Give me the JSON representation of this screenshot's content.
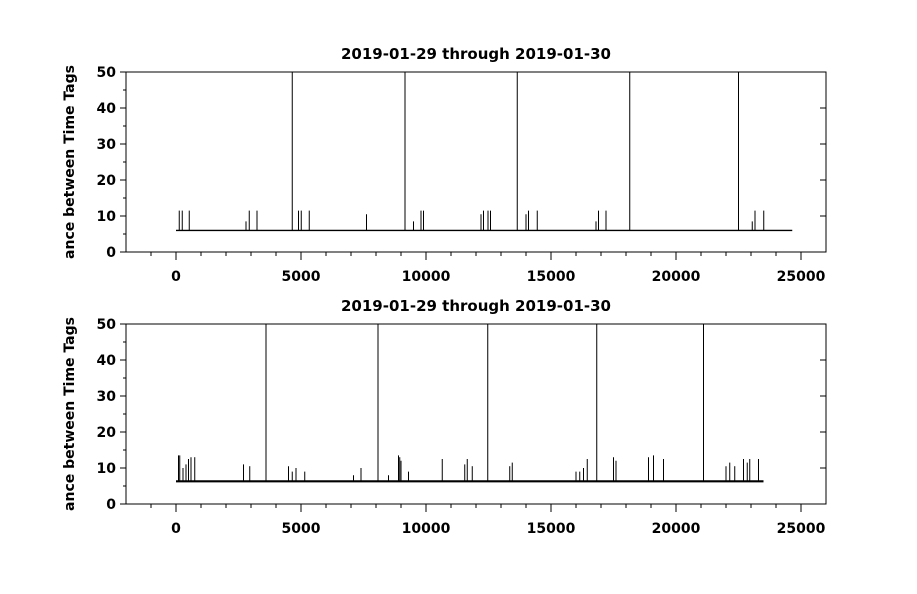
{
  "chart_data": [
    {
      "type": "line",
      "title": "2019-01-29 through 2019-01-30",
      "xlabel": "",
      "ylabel": "ance between Time Tags",
      "xlim": [
        -2000,
        26000
      ],
      "ylim": [
        0,
        50
      ],
      "xticks": [
        0,
        5000,
        10000,
        15000,
        20000,
        25000
      ],
      "yticks": [
        0,
        10,
        20,
        30,
        40,
        50
      ],
      "grid": false,
      "series": [
        {
          "baseline": 6,
          "x_end": 24650,
          "spikes": [
            {
              "x": 130,
              "y": 11.5
            },
            {
              "x": 250,
              "y": 11.5
            },
            {
              "x": 530,
              "y": 11.5
            },
            {
              "x": 2800,
              "y": 8.5
            },
            {
              "x": 2930,
              "y": 11.5
            },
            {
              "x": 3240,
              "y": 11.5
            },
            {
              "x": 4650,
              "y": 50
            },
            {
              "x": 4900,
              "y": 11.5
            },
            {
              "x": 5010,
              "y": 11.5
            },
            {
              "x": 5330,
              "y": 11.5
            },
            {
              "x": 7620,
              "y": 10.5
            },
            {
              "x": 9160,
              "y": 50
            },
            {
              "x": 9500,
              "y": 8.5
            },
            {
              "x": 9800,
              "y": 11.5
            },
            {
              "x": 9900,
              "y": 11.5
            },
            {
              "x": 12200,
              "y": 10.5
            },
            {
              "x": 12300,
              "y": 11.5
            },
            {
              "x": 12480,
              "y": 11.5
            },
            {
              "x": 12580,
              "y": 11.5
            },
            {
              "x": 13650,
              "y": 50
            },
            {
              "x": 14000,
              "y": 10.5
            },
            {
              "x": 14100,
              "y": 11.5
            },
            {
              "x": 14450,
              "y": 11.5
            },
            {
              "x": 16800,
              "y": 8.5
            },
            {
              "x": 16900,
              "y": 11.5
            },
            {
              "x": 17200,
              "y": 11.5
            },
            {
              "x": 18150,
              "y": 50
            },
            {
              "x": 22500,
              "y": 50
            },
            {
              "x": 23050,
              "y": 8.5
            },
            {
              "x": 23160,
              "y": 11.5
            },
            {
              "x": 23510,
              "y": 11.5
            }
          ]
        }
      ]
    },
    {
      "type": "line",
      "title": "2019-01-29 through 2019-01-30",
      "xlabel": "",
      "ylabel": "ance between Time Tags",
      "xlim": [
        -2000,
        26000
      ],
      "ylim": [
        0,
        50
      ],
      "xticks": [
        0,
        5000,
        10000,
        15000,
        20000,
        25000
      ],
      "yticks": [
        0,
        10,
        20,
        30,
        40,
        50
      ],
      "grid": false,
      "series": [
        {
          "baseline": 6.3,
          "x_end": 23500,
          "spikes": [
            {
              "x": 100,
              "y": 13.5
            },
            {
              "x": 150,
              "y": 13.5
            },
            {
              "x": 280,
              "y": 10
            },
            {
              "x": 400,
              "y": 11
            },
            {
              "x": 500,
              "y": 12.5
            },
            {
              "x": 600,
              "y": 13
            },
            {
              "x": 750,
              "y": 13
            },
            {
              "x": 2700,
              "y": 11
            },
            {
              "x": 2950,
              "y": 10.5
            },
            {
              "x": 3600,
              "y": 50
            },
            {
              "x": 4500,
              "y": 10.5
            },
            {
              "x": 4650,
              "y": 9
            },
            {
              "x": 4800,
              "y": 10
            },
            {
              "x": 5150,
              "y": 9
            },
            {
              "x": 7100,
              "y": 8
            },
            {
              "x": 7400,
              "y": 10
            },
            {
              "x": 8080,
              "y": 50
            },
            {
              "x": 8500,
              "y": 8
            },
            {
              "x": 8900,
              "y": 13.5
            },
            {
              "x": 8950,
              "y": 13
            },
            {
              "x": 9000,
              "y": 12
            },
            {
              "x": 9300,
              "y": 9
            },
            {
              "x": 10650,
              "y": 12.5
            },
            {
              "x": 11550,
              "y": 11
            },
            {
              "x": 11650,
              "y": 12.5
            },
            {
              "x": 11850,
              "y": 10.5
            },
            {
              "x": 12470,
              "y": 50
            },
            {
              "x": 13350,
              "y": 10.5
            },
            {
              "x": 13450,
              "y": 11.5
            },
            {
              "x": 16000,
              "y": 9
            },
            {
              "x": 16150,
              "y": 9
            },
            {
              "x": 16300,
              "y": 10
            },
            {
              "x": 16450,
              "y": 12.5
            },
            {
              "x": 16830,
              "y": 50
            },
            {
              "x": 17500,
              "y": 13
            },
            {
              "x": 17600,
              "y": 12
            },
            {
              "x": 18900,
              "y": 13
            },
            {
              "x": 19100,
              "y": 13.5
            },
            {
              "x": 19500,
              "y": 12.5
            },
            {
              "x": 21100,
              "y": 50
            },
            {
              "x": 22000,
              "y": 10.5
            },
            {
              "x": 22150,
              "y": 11.5
            },
            {
              "x": 22350,
              "y": 10.5
            },
            {
              "x": 22700,
              "y": 12.5
            },
            {
              "x": 22850,
              "y": 11.5
            },
            {
              "x": 22950,
              "y": 12.5
            },
            {
              "x": 23300,
              "y": 12.5
            }
          ]
        }
      ]
    }
  ]
}
